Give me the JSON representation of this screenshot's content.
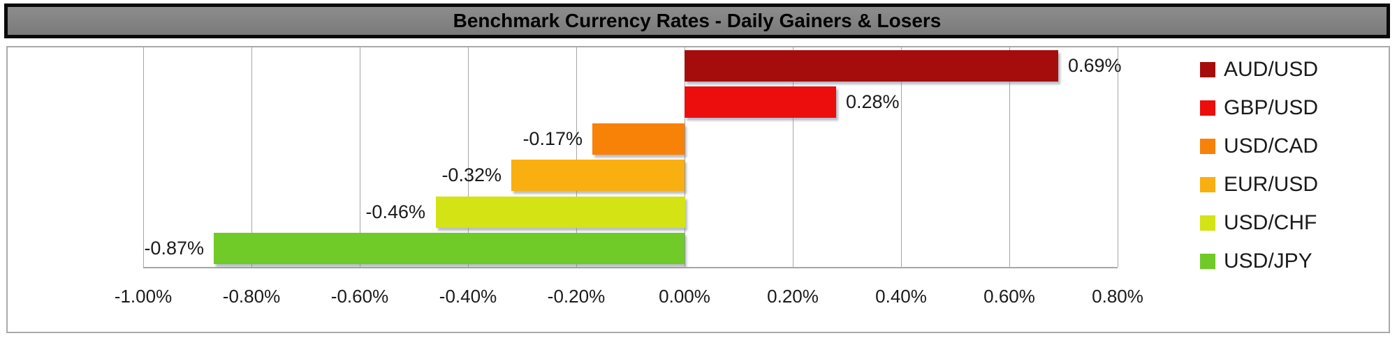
{
  "title": "Benchmark Currency Rates - Daily Gainers & Losers",
  "chart_data": {
    "type": "bar",
    "orientation": "horizontal",
    "title": "Benchmark Currency Rates - Daily Gainers & Losers",
    "categories": [
      "AUD/USD",
      "GBP/USD",
      "USD/CAD",
      "EUR/USD",
      "USD/CHF",
      "USD/JPY"
    ],
    "values": [
      0.69,
      0.28,
      -0.17,
      -0.32,
      -0.46,
      -0.87
    ],
    "value_labels": [
      "0.69%",
      "0.28%",
      "-0.17%",
      "-0.32%",
      "-0.46%",
      "-0.87%"
    ],
    "bar_colors": [
      "#A50D0D",
      "#EC0D0D",
      "#F88108",
      "#F9AF10",
      "#D4E314",
      "#70CA27"
    ],
    "xlim": [
      -1.0,
      0.8
    ],
    "x_tick_values": [
      -1.0,
      -0.8,
      -0.6,
      -0.4,
      -0.2,
      0.0,
      0.2,
      0.4,
      0.6,
      0.8
    ],
    "x_tick_labels": [
      "-1.00%",
      "-0.80%",
      "-0.60%",
      "-0.40%",
      "-0.20%",
      "0.00%",
      "0.20%",
      "0.40%",
      "0.60%",
      "0.80%"
    ],
    "grid": true,
    "legend_position": "right",
    "legend": [
      "AUD/USD",
      "GBP/USD",
      "USD/CAD",
      "EUR/USD",
      "USD/CHF",
      "USD/JPY"
    ]
  },
  "colors": {
    "title_bg": "#7D7D7D",
    "title_border": "#0A0A0A",
    "title_text": "#000000",
    "chart_border": "#A9A9A9",
    "gridline": "#A6A6A6",
    "axis_line": "#A6A6A6",
    "label_text": "#1A1A1A",
    "background": "#FFFFFF"
  }
}
